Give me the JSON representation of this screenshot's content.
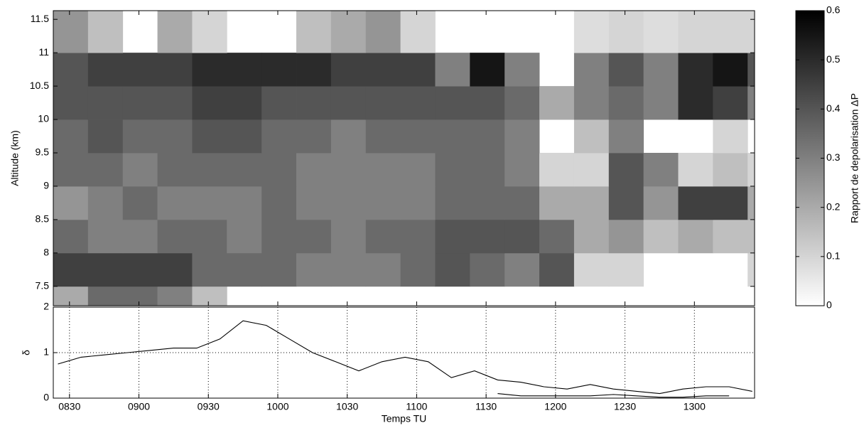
{
  "chart_data": [
    {
      "type": "heatmap",
      "ylabel": "Altitude (km)",
      "x_bins": [
        503,
        518,
        533,
        548,
        563,
        578,
        593,
        608,
        623,
        638,
        653,
        668,
        683,
        698,
        713,
        728,
        743,
        758,
        773,
        788,
        803,
        806
      ],
      "y_bins": [
        7.21,
        7.5,
        8,
        8.5,
        9,
        9.5,
        10,
        10.5,
        11,
        11.63
      ],
      "values": [
        [
          0.2,
          0.35,
          0.35,
          0.3,
          0.15,
          null,
          null,
          null,
          null,
          null,
          null,
          null,
          null,
          null,
          null,
          null,
          null,
          null,
          null,
          null,
          null
        ],
        [
          0.45,
          0.45,
          0.45,
          0.45,
          0.35,
          0.35,
          0.35,
          0.3,
          0.3,
          0.3,
          0.35,
          0.4,
          0.35,
          0.3,
          0.4,
          0.1,
          0.1,
          null,
          null,
          null,
          0.1
        ],
        [
          0.35,
          0.3,
          0.3,
          0.35,
          0.35,
          0.3,
          0.35,
          0.35,
          0.3,
          0.35,
          0.35,
          0.4,
          0.4,
          0.4,
          0.35,
          0.2,
          0.25,
          0.15,
          0.2,
          0.15,
          0.15
        ],
        [
          0.25,
          0.3,
          0.35,
          0.3,
          0.3,
          0.3,
          0.35,
          0.3,
          0.3,
          0.3,
          0.3,
          0.35,
          0.35,
          0.35,
          0.2,
          0.2,
          0.4,
          0.25,
          0.45,
          0.45,
          0.2
        ],
        [
          0.35,
          0.35,
          0.3,
          0.35,
          0.35,
          0.35,
          0.35,
          0.3,
          0.3,
          0.3,
          0.3,
          0.35,
          0.35,
          0.3,
          0.1,
          0.1,
          0.4,
          0.3,
          0.1,
          0.15,
          0.1
        ],
        [
          0.35,
          0.4,
          0.35,
          0.35,
          0.4,
          0.4,
          0.35,
          0.35,
          0.3,
          0.35,
          0.35,
          0.35,
          0.35,
          0.3,
          null,
          0.15,
          0.3,
          null,
          null,
          0.1,
          null
        ],
        [
          0.4,
          0.4,
          0.4,
          0.4,
          0.45,
          0.45,
          0.4,
          0.4,
          0.4,
          0.4,
          0.4,
          0.4,
          0.4,
          0.35,
          0.2,
          0.3,
          0.35,
          0.3,
          0.5,
          0.45,
          0.3
        ],
        [
          0.4,
          0.45,
          0.45,
          0.45,
          0.5,
          0.5,
          0.5,
          0.5,
          0.45,
          0.45,
          0.45,
          0.3,
          0.55,
          0.3,
          null,
          0.3,
          0.4,
          0.3,
          0.5,
          0.55,
          0.4
        ],
        [
          0.25,
          0.15,
          null,
          0.2,
          0.1,
          null,
          null,
          0.15,
          0.2,
          0.25,
          0.1,
          null,
          null,
          null,
          null,
          0.08,
          0.1,
          0.08,
          0.1,
          0.1,
          0.1
        ]
      ],
      "xlim": [
        503,
        806
      ],
      "ylim": [
        7.21,
        11.63
      ],
      "yticks": [
        7.5,
        8,
        8.5,
        9,
        9.5,
        10,
        10.5,
        11,
        11.5
      ],
      "colorbar": {
        "label": "Rapport de depolarisation ΔP",
        "lim": [
          0,
          0.6
        ],
        "ticks": [
          0,
          0.1,
          0.2,
          0.3,
          0.4,
          0.5,
          0.6
        ],
        "colors": [
          "#ffffff",
          "#000000"
        ]
      }
    },
    {
      "type": "line",
      "xlabel": "Temps TU",
      "ylabel": "δ",
      "x": [
        505,
        515,
        525,
        535,
        545,
        555,
        565,
        575,
        585,
        595,
        605,
        615,
        625,
        635,
        645,
        655,
        665,
        675,
        685,
        695,
        705,
        715,
        725,
        735,
        745,
        755,
        765,
        775,
        785,
        795,
        805
      ],
      "series": [
        {
          "color": "#000000",
          "values": [
            0.75,
            0.9,
            0.95,
            1.0,
            1.05,
            1.1,
            1.1,
            1.3,
            1.7,
            1.6,
            1.3,
            1.0,
            0.8,
            0.6,
            0.8,
            0.9,
            0.8,
            0.45,
            0.6,
            0.4,
            0.35,
            0.25,
            0.2,
            0.3,
            0.2,
            0.15,
            0.1,
            0.2,
            0.25,
            0.25,
            0.15
          ]
        },
        {
          "color": "#000000",
          "values": [
            null,
            null,
            null,
            null,
            null,
            null,
            null,
            null,
            null,
            null,
            null,
            null,
            null,
            null,
            null,
            null,
            null,
            null,
            null,
            0.1,
            0.05,
            0.05,
            0.05,
            0.05,
            0.08,
            0.05,
            0.02,
            0.02,
            0.05,
            0.05,
            null
          ]
        }
      ],
      "xlim": [
        503,
        806
      ],
      "ylim": [
        0,
        2
      ],
      "yticks": [
        0,
        1,
        2
      ],
      "xticks": [
        {
          "value": 510,
          "label": "0830"
        },
        {
          "value": 540,
          "label": "0900"
        },
        {
          "value": 570,
          "label": "0930"
        },
        {
          "value": 600,
          "label": "1000"
        },
        {
          "value": 630,
          "label": "1030"
        },
        {
          "value": 660,
          "label": "1100"
        },
        {
          "value": 690,
          "label": "1130"
        },
        {
          "value": 720,
          "label": "1200"
        },
        {
          "value": 750,
          "label": "1230"
        },
        {
          "value": 780,
          "label": "1300"
        }
      ],
      "grid": true
    }
  ]
}
